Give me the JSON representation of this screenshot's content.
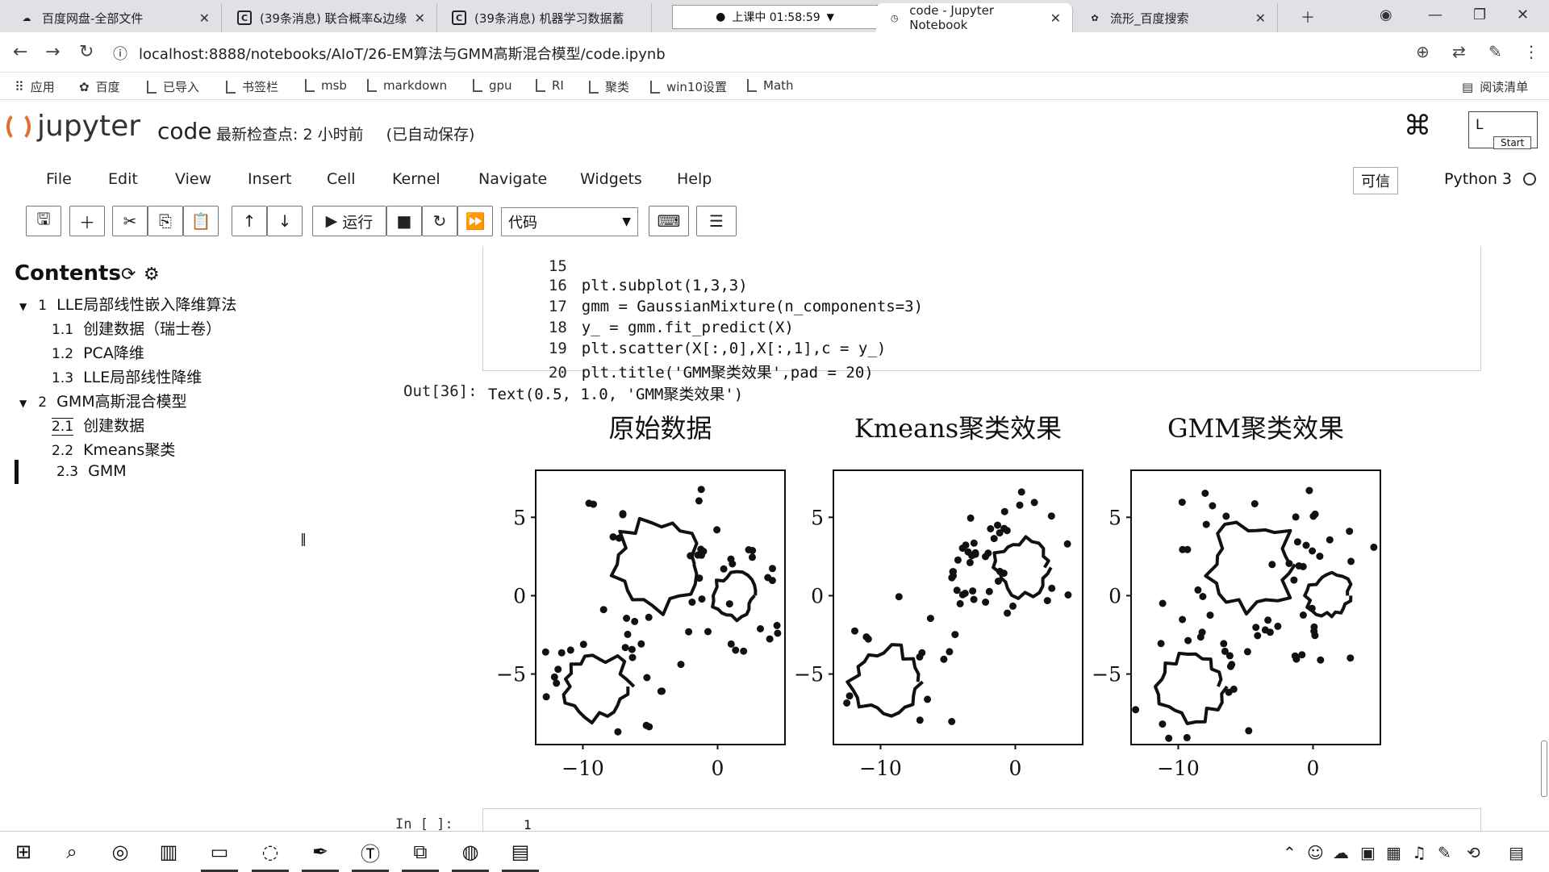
{
  "browser": {
    "tabs": [
      {
        "label": "百度网盘-全部文件",
        "fav": "☁"
      },
      {
        "label": "(39条消息) 联合概率&边缘",
        "fav": "C"
      },
      {
        "label": "(39条消息) 机器学习数据蓄",
        "fav": "C"
      },
      {
        "label": "code - Jupyter Notebook",
        "fav": "◷"
      },
      {
        "label": "流形_百度搜索",
        "fav": "✿"
      }
    ],
    "recording_badge": "上课中 01:58:59",
    "url": "localhost:8888/notebooks/AIoT/26-EM算法与GMM高斯混合模型/code.ipynb",
    "bookmarks": [
      "应用",
      "百度",
      "已导入",
      "书签栏",
      "msb",
      "markdown",
      "gpu",
      "RI",
      "聚类",
      "win10设置",
      "Math"
    ],
    "reading_list": "阅读清单"
  },
  "jupyter": {
    "brand": "jupyter",
    "notebook_name": "code",
    "checkpoint": "最新检查点: 2 小时前",
    "autosave": "(已自动保存)",
    "logout_label": "L",
    "start_label": "Start",
    "menu": [
      "File",
      "Edit",
      "View",
      "Insert",
      "Cell",
      "Kernel",
      "Navigate",
      "Widgets",
      "Help"
    ],
    "trusted": "可信",
    "kernel_name": "Python 3",
    "run_label": "运行",
    "cell_type": "代码"
  },
  "toc": {
    "title": "Contents",
    "items": [
      {
        "num": "1",
        "label": "LLE局部线性嵌入降维算法",
        "level": 1
      },
      {
        "num": "1.1",
        "label": "创建数据（瑞士卷）",
        "level": 2
      },
      {
        "num": "1.2",
        "label": "PCA降维",
        "level": 2
      },
      {
        "num": "1.3",
        "label": "LLE局部线性降维",
        "level": 2
      },
      {
        "num": "2",
        "label": "GMM高斯混合模型",
        "level": 1
      },
      {
        "num": "2.1",
        "label": "创建数据",
        "level": 2
      },
      {
        "num": "2.2",
        "label": "Kmeans聚类",
        "level": 2
      },
      {
        "num": "2.3",
        "label": "GMM",
        "level": 2
      }
    ]
  },
  "cell": {
    "lines": [
      {
        "n": "15",
        "code": ""
      },
      {
        "n": "16",
        "code": "plt.subplot(1,3,3)"
      },
      {
        "n": "17",
        "code": "gmm = GaussianMixture(n_components=3)"
      },
      {
        "n": "18",
        "code": "y_ = gmm.fit_predict(X)"
      },
      {
        "n": "19",
        "code": "plt.scatter(X[:,0],X[:,1],c = y_)"
      },
      {
        "n": "20",
        "code": "plt.title('GMM聚类效果',pad = 20)"
      }
    ],
    "out_prompt": "Out[36]:",
    "out_text": "Text(0.5, 1.0, 'GMM聚类效果')",
    "next_prompt": "In [ ]:",
    "next_line_no": "1"
  },
  "chart_data": [
    {
      "type": "scatter",
      "title": "原始数据",
      "xticks": [
        "−10",
        "0"
      ],
      "yticks": [
        "5",
        "0",
        "−5"
      ],
      "xlim": [
        -13.5,
        5
      ],
      "ylim": [
        -9.5,
        8
      ]
    },
    {
      "type": "scatter",
      "title": "Kmeans聚类效果",
      "xticks": [
        "−10",
        "0"
      ],
      "yticks": [
        "5",
        "0",
        "−5"
      ],
      "xlim": [
        -13.5,
        5
      ],
      "ylim": [
        -9.5,
        8
      ]
    },
    {
      "type": "scatter",
      "title": "GMM聚类效果",
      "xticks": [
        "−10",
        "0"
      ],
      "yticks": [
        "5",
        "0",
        "−5"
      ],
      "xlim": [
        -13.5,
        5
      ],
      "ylim": [
        -9.5,
        8
      ]
    }
  ],
  "taskbar": {
    "icons": [
      "windows-icon",
      "search-icon",
      "cortana-icon",
      "task-view-icon",
      "file-explorer-icon",
      "browser-icon",
      "pen-tool-icon",
      "typora-icon",
      "pycharm-icon",
      "chrome-icon",
      "snipaste-icon"
    ]
  }
}
